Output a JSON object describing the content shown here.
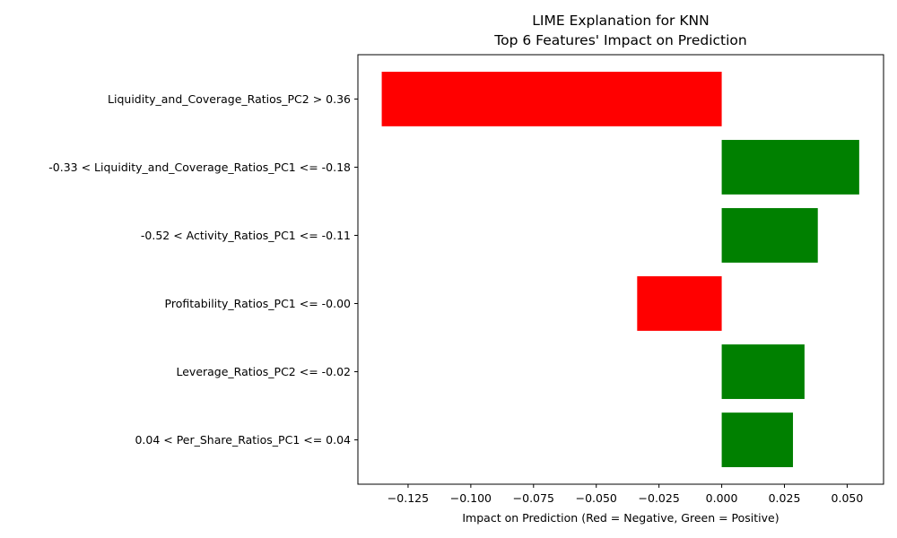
{
  "chart_data": {
    "type": "bar",
    "orientation": "horizontal",
    "title": "LIME Explanation for KNN",
    "subtitle": "Top 6 Features' Impact on Prediction",
    "xlabel": "Impact on Prediction (Red = Negative, Green = Positive)",
    "ylabel": "",
    "categories": [
      "Liquidity_and_Coverage_Ratios_PC2 > 0.36",
      "-0.33 < Liquidity_and_Coverage_Ratios_PC1 <= -0.18",
      "-0.52 < Activity_Ratios_PC1 <= -0.11",
      "Profitability_Ratios_PC1 <= -0.00",
      "Leverage_Ratios_PC2 <= -0.02",
      "0.04 < Per_Share_Ratios_PC1 <= 0.04"
    ],
    "values": [
      -0.1355,
      0.0548,
      0.0383,
      -0.0337,
      0.033,
      0.0284
    ],
    "xlim": [
      -0.145,
      0.0645
    ],
    "xticks": [
      -0.125,
      -0.1,
      -0.075,
      -0.05,
      -0.025,
      0.0,
      0.025,
      0.05
    ],
    "xtick_labels": [
      "−0.125",
      "−0.100",
      "−0.075",
      "−0.050",
      "−0.025",
      "0.000",
      "0.025",
      "0.050"
    ],
    "colors": {
      "negative": "#ff0000",
      "positive": "#008000"
    },
    "grid": false,
    "legend": "none"
  }
}
